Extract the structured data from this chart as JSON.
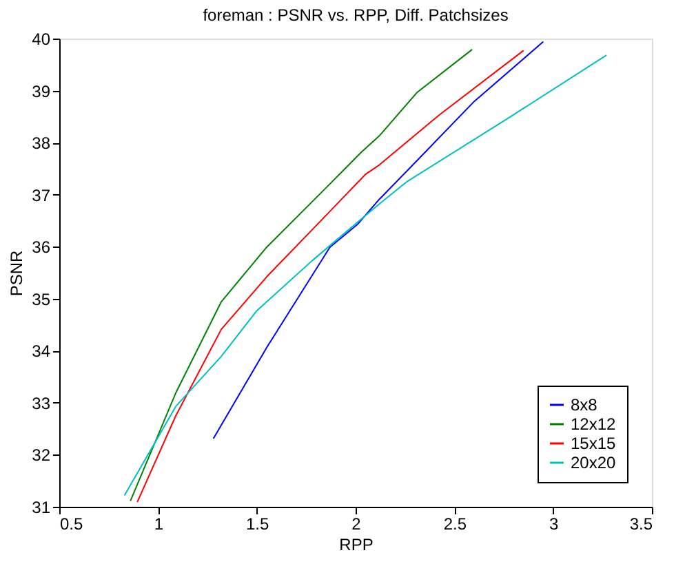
{
  "chart_data": {
    "type": "line",
    "title": "foreman : PSNR vs. RPP, Diff. Patchsizes",
    "xlabel": "RPP",
    "ylabel": "PSNR",
    "xlim": [
      0.5,
      3.5
    ],
    "xticks": [
      0.5,
      1,
      1.5,
      2,
      2.5,
      3,
      3.5
    ],
    "ylim": [
      31,
      40
    ],
    "yticks": [
      31,
      32,
      33,
      34,
      35,
      36,
      37,
      38,
      39,
      40
    ],
    "grid": false,
    "legend": "bottom right",
    "marker": "none",
    "line_style": "solid",
    "series": [
      {
        "name": "8x8",
        "color": "#0000ff",
        "x": [
          1.28,
          1.55,
          1.87,
          2.01,
          2.12,
          2.31,
          2.6,
          2.95
        ],
        "values": [
          32.31,
          34.06,
          35.99,
          36.43,
          36.91,
          37.65,
          38.79,
          39.94
        ]
      },
      {
        "name": "12x12",
        "color": "#008000",
        "x": [
          0.86,
          1.09,
          1.32,
          1.55,
          1.85,
          2.03,
          2.12,
          2.31,
          2.59
        ],
        "values": [
          31.11,
          33.19,
          34.94,
          35.99,
          37.13,
          37.82,
          38.13,
          38.96,
          39.79
        ]
      },
      {
        "name": "15x15",
        "color": "#ff0000",
        "x": [
          0.895,
          1.09,
          1.32,
          1.55,
          1.85,
          2.05,
          2.12,
          2.42,
          2.85
        ],
        "values": [
          31.09,
          32.75,
          34.41,
          35.42,
          36.6,
          37.39,
          37.57,
          38.52,
          39.77
        ]
      },
      {
        "name": "20x20",
        "color": "#00bfbf",
        "x": [
          0.83,
          1.09,
          1.32,
          1.5,
          1.78,
          2.05,
          2.12,
          2.26,
          2.76,
          3.27
        ],
        "values": [
          31.22,
          32.93,
          33.89,
          34.77,
          35.73,
          36.6,
          36.82,
          37.25,
          38.44,
          39.68
        ]
      }
    ]
  }
}
